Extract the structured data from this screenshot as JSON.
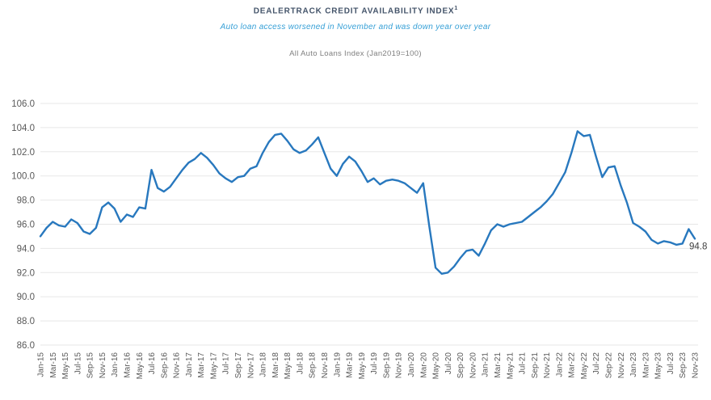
{
  "header": {
    "title": "DEALERTRACK CREDIT AVAILABILITY INDEX",
    "title_superscript": "1",
    "subtitle": "Auto loan access worsened in November and was down year over year",
    "caption": "All Auto Loans Index (Jan2019=100)"
  },
  "chart_data": {
    "type": "line",
    "series_name": "All Auto Loans Index",
    "title": "DEALERTRACK CREDIT AVAILABILITY INDEX",
    "xlabel": "",
    "ylabel": "",
    "ylim": [
      86.0,
      106.0
    ],
    "ytick_step": 2.0,
    "ytick_decimals": 1,
    "x_tick_every": 2,
    "grid": "horizontal-only",
    "legend": "none",
    "line_color": "#2878be",
    "end_label": "94.8",
    "x": [
      "Jan-15",
      "Feb-15",
      "Mar-15",
      "Apr-15",
      "May-15",
      "Jun-15",
      "Jul-15",
      "Aug-15",
      "Sep-15",
      "Oct-15",
      "Nov-15",
      "Dec-15",
      "Jan-16",
      "Feb-16",
      "Mar-16",
      "Apr-16",
      "May-16",
      "Jun-16",
      "Jul-16",
      "Aug-16",
      "Sep-16",
      "Oct-16",
      "Nov-16",
      "Dec-16",
      "Jan-17",
      "Feb-17",
      "Mar-17",
      "Apr-17",
      "May-17",
      "Jun-17",
      "Jul-17",
      "Aug-17",
      "Sep-17",
      "Oct-17",
      "Nov-17",
      "Dec-17",
      "Jan-18",
      "Feb-18",
      "Mar-18",
      "Apr-18",
      "May-18",
      "Jun-18",
      "Jul-18",
      "Aug-18",
      "Sep-18",
      "Oct-18",
      "Nov-18",
      "Dec-18",
      "Jan-19",
      "Feb-19",
      "Mar-19",
      "Apr-19",
      "May-19",
      "Jun-19",
      "Jul-19",
      "Aug-19",
      "Sep-19",
      "Oct-19",
      "Nov-19",
      "Dec-19",
      "Jan-20",
      "Feb-20",
      "Mar-20",
      "Apr-20",
      "May-20",
      "Jun-20",
      "Jul-20",
      "Aug-20",
      "Sep-20",
      "Oct-20",
      "Nov-20",
      "Dec-20",
      "Jan-21",
      "Feb-21",
      "Mar-21",
      "Apr-21",
      "May-21",
      "Jun-21",
      "Jul-21",
      "Aug-21",
      "Sep-21",
      "Oct-21",
      "Nov-21",
      "Dec-21",
      "Jan-22",
      "Feb-22",
      "Mar-22",
      "Apr-22",
      "May-22",
      "Jun-22",
      "Jul-22",
      "Aug-22",
      "Sep-22",
      "Oct-22",
      "Nov-22",
      "Dec-22",
      "Jan-23",
      "Feb-23",
      "Mar-23",
      "Apr-23",
      "May-23",
      "Jun-23",
      "Jul-23",
      "Aug-23",
      "Sep-23",
      "Oct-23",
      "Nov-23"
    ],
    "values": [
      95.0,
      95.7,
      96.2,
      95.9,
      95.8,
      96.4,
      96.1,
      95.4,
      95.2,
      95.7,
      97.4,
      97.8,
      97.3,
      96.2,
      96.8,
      96.6,
      97.4,
      97.3,
      100.5,
      99.0,
      98.7,
      99.1,
      99.8,
      100.5,
      101.1,
      101.4,
      101.9,
      101.5,
      100.9,
      100.2,
      99.8,
      99.5,
      99.9,
      100.0,
      100.6,
      100.8,
      101.9,
      102.8,
      103.4,
      103.5,
      102.9,
      102.2,
      101.9,
      102.1,
      102.6,
      103.2,
      101.9,
      100.6,
      100.0,
      101.0,
      101.6,
      101.2,
      100.4,
      99.5,
      99.8,
      99.3,
      99.6,
      99.7,
      99.6,
      99.4,
      99.0,
      98.6,
      99.4,
      95.8,
      92.4,
      91.9,
      92.0,
      92.5,
      93.2,
      93.8,
      93.9,
      93.4,
      94.4,
      95.5,
      96.0,
      95.8,
      96.0,
      96.1,
      96.2,
      96.6,
      97.0,
      97.4,
      97.9,
      98.5,
      99.4,
      100.3,
      101.9,
      103.7,
      103.3,
      103.4,
      101.6,
      99.9,
      100.7,
      100.8,
      99.2,
      97.8,
      96.1,
      95.8,
      95.4,
      94.7,
      94.4,
      94.6,
      94.5,
      94.3,
      94.4,
      95.6,
      94.8
    ]
  },
  "colors": {
    "title": "#44546a",
    "subtitle": "#359fd6",
    "caption": "#7f7f7f",
    "axis_text": "#595959",
    "gridline": "#e7e7e7",
    "line": "#2878be",
    "end_label": "#404040",
    "background": "#ffffff"
  }
}
